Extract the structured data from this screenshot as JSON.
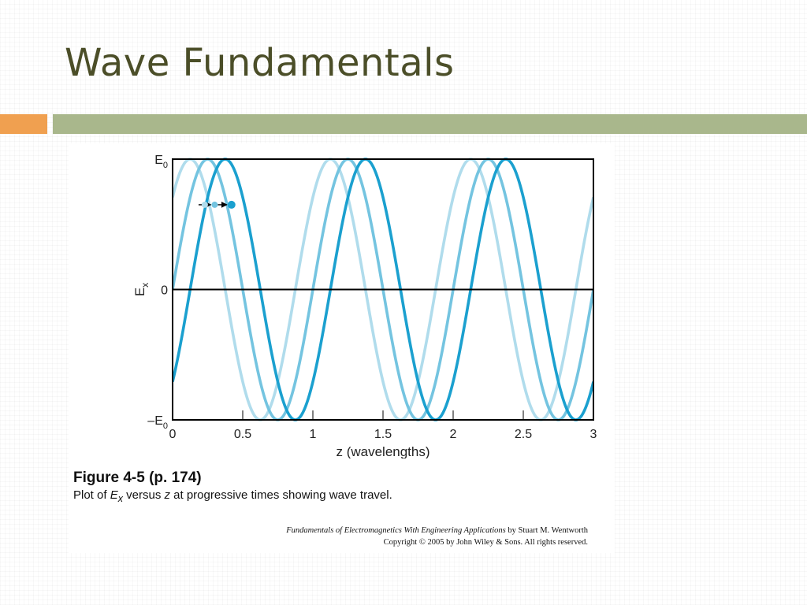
{
  "slide": {
    "title": "Wave Fundamentals",
    "accent_orange": "#f0a050",
    "accent_green": "#a9b78c"
  },
  "caption": {
    "title": "Figure 4-5  (p. 174)",
    "pre": "Plot of ",
    "e_symbol": "E",
    "e_sub": "x",
    "mid": " versus ",
    "z_symbol": "z",
    "post": " at progressive times showing wave travel."
  },
  "credit": {
    "book": "Fundamentals of Electromagnetics With Engineering Applications",
    "author": " by Stuart M. Wentworth",
    "copyright": "Copyright © 2005 by John Wiley & Sons. All rights reserved."
  },
  "chart_data": {
    "type": "line",
    "xlabel": "z (wavelengths)",
    "ylabel": {
      "symbol": "E",
      "sub": "x"
    },
    "xlim": [
      0,
      3
    ],
    "ylim": [
      -1,
      1
    ],
    "x_ticks": [
      "0",
      "0.5",
      "1",
      "1.5",
      "2",
      "2.5",
      "3"
    ],
    "y_ticks": [
      {
        "value": 1,
        "label": "E",
        "sub": "0"
      },
      {
        "value": 0,
        "label": "0",
        "sub": ""
      },
      {
        "value": -1,
        "label": "–E",
        "sub": "0"
      }
    ],
    "wavelength": 1,
    "series": [
      {
        "peak_z": 0.125,
        "color": "#b0dcec"
      },
      {
        "peak_z": 0.25,
        "color": "#74c4e0"
      },
      {
        "peak_z": 0.375,
        "color": "#1ba0cf"
      }
    ],
    "travel_marker": {
      "y": 0.65,
      "z_points": [
        0.23,
        0.3,
        0.42
      ]
    },
    "zero_line": true,
    "grid": false
  }
}
